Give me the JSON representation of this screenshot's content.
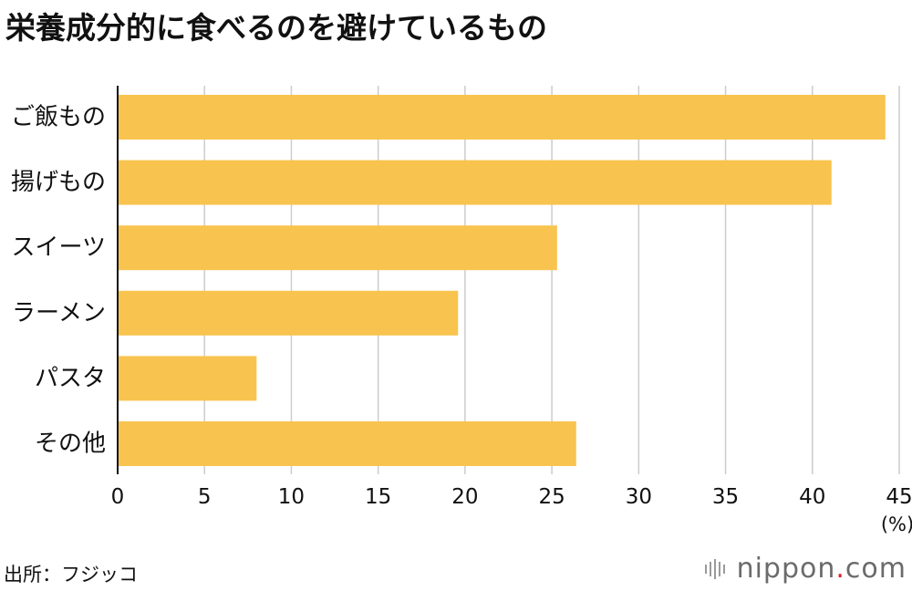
{
  "title": "栄養成分的に食べるのを避けているもの",
  "source": "出所：フジッコ",
  "brand": {
    "name": "nippon",
    "dot": ".",
    "suffix": "com"
  },
  "colors": {
    "bar": "#F8C44F",
    "grid": "#cccccc",
    "axis": "#111111",
    "text": "#111111"
  },
  "chart_data": {
    "type": "bar",
    "orientation": "horizontal",
    "categories": [
      "ご飯もの",
      "揚げもの",
      "スイーツ",
      "ラーメン",
      "パスタ",
      "その他"
    ],
    "values": [
      44.2,
      41.1,
      25.3,
      19.6,
      8.0,
      26.4
    ],
    "xlim": [
      0,
      45
    ],
    "xticks": [
      "0",
      "5",
      "10",
      "15",
      "20",
      "25",
      "30",
      "35",
      "40",
      "45"
    ],
    "unit": "(%)",
    "grid": true
  }
}
